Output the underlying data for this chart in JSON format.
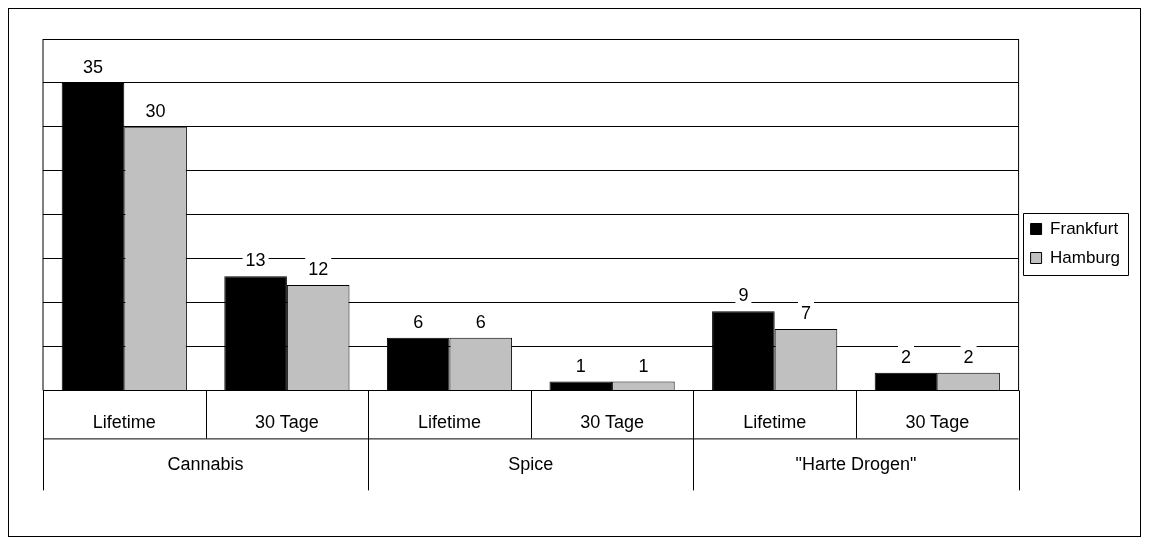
{
  "chart_data": {
    "type": "bar",
    "categories": [
      "Lifetime",
      "30 Tage",
      "Lifetime",
      "30 Tage",
      "Lifetime",
      "30 Tage"
    ],
    "series": [
      {
        "name": "Frankfurt",
        "color": "#000000",
        "values": [
          35,
          13,
          6,
          1,
          9,
          2
        ]
      },
      {
        "name": "Hamburg",
        "color": "#c0c0c0",
        "values": [
          30,
          12,
          6,
          1,
          7,
          2
        ]
      }
    ],
    "ylim": [
      0,
      40
    ],
    "yticks": [
      {
        "value": 0,
        "label": null
      },
      {
        "value": 5,
        "label": null
      },
      {
        "value": 10,
        "label": null
      },
      {
        "value": 15,
        "label": null
      },
      {
        "value": 20,
        "label": null
      },
      {
        "value": 25,
        "label": null
      },
      {
        "value": 30,
        "label": null
      },
      {
        "value": 35,
        "label": null
      },
      {
        "value": 40,
        "label": null
      }
    ],
    "grid": "y",
    "legend": "right",
    "data_labels": true,
    "annotations": [
      "Cannabis",
      "Spice",
      "\"Harte Drogen\""
    ]
  }
}
